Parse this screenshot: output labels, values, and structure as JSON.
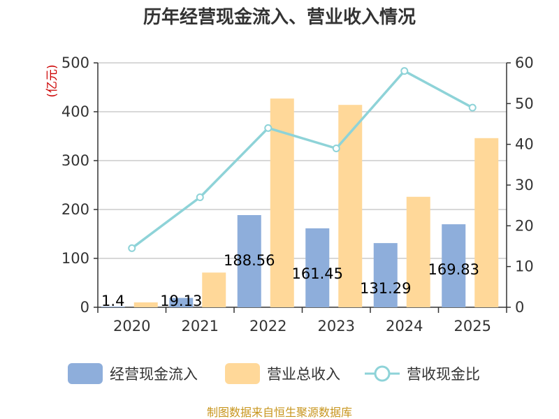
{
  "chart_data": {
    "type": "bar",
    "title": "历年经营现金流入、营业收入情况",
    "categories": [
      "2020",
      "2021",
      "2022",
      "2023",
      "2024",
      "2025"
    ],
    "left_axis": {
      "unit": "(亿元)",
      "ylim": [
        0,
        500
      ],
      "ticks": [
        0,
        100,
        200,
        300,
        400,
        500
      ]
    },
    "right_axis": {
      "unit": "%",
      "ylim": [
        0,
        60
      ],
      "ticks": [
        0,
        10,
        20,
        30,
        40,
        50,
        60
      ]
    },
    "series": [
      {
        "name": "经营现金流入",
        "type": "bar",
        "axis": "left",
        "color": "#8eaedb",
        "values": [
          1.4,
          19.13,
          188.56,
          161.45,
          131.29,
          169.83
        ],
        "labels": [
          "1.4",
          "19.13",
          "188.56",
          "161.45",
          "131.29",
          "169.83"
        ]
      },
      {
        "name": "营业总收入",
        "type": "bar",
        "axis": "left",
        "color": "#ffd899",
        "values": [
          10,
          71,
          427,
          414,
          226,
          346
        ]
      },
      {
        "name": "营收现金比",
        "type": "line",
        "axis": "right",
        "color": "#8ed3d8",
        "values": [
          14.5,
          27,
          44,
          39,
          58,
          49
        ]
      }
    ],
    "grid": true,
    "legend": "bottom"
  },
  "source": "制图数据来自恒生聚源数据库"
}
